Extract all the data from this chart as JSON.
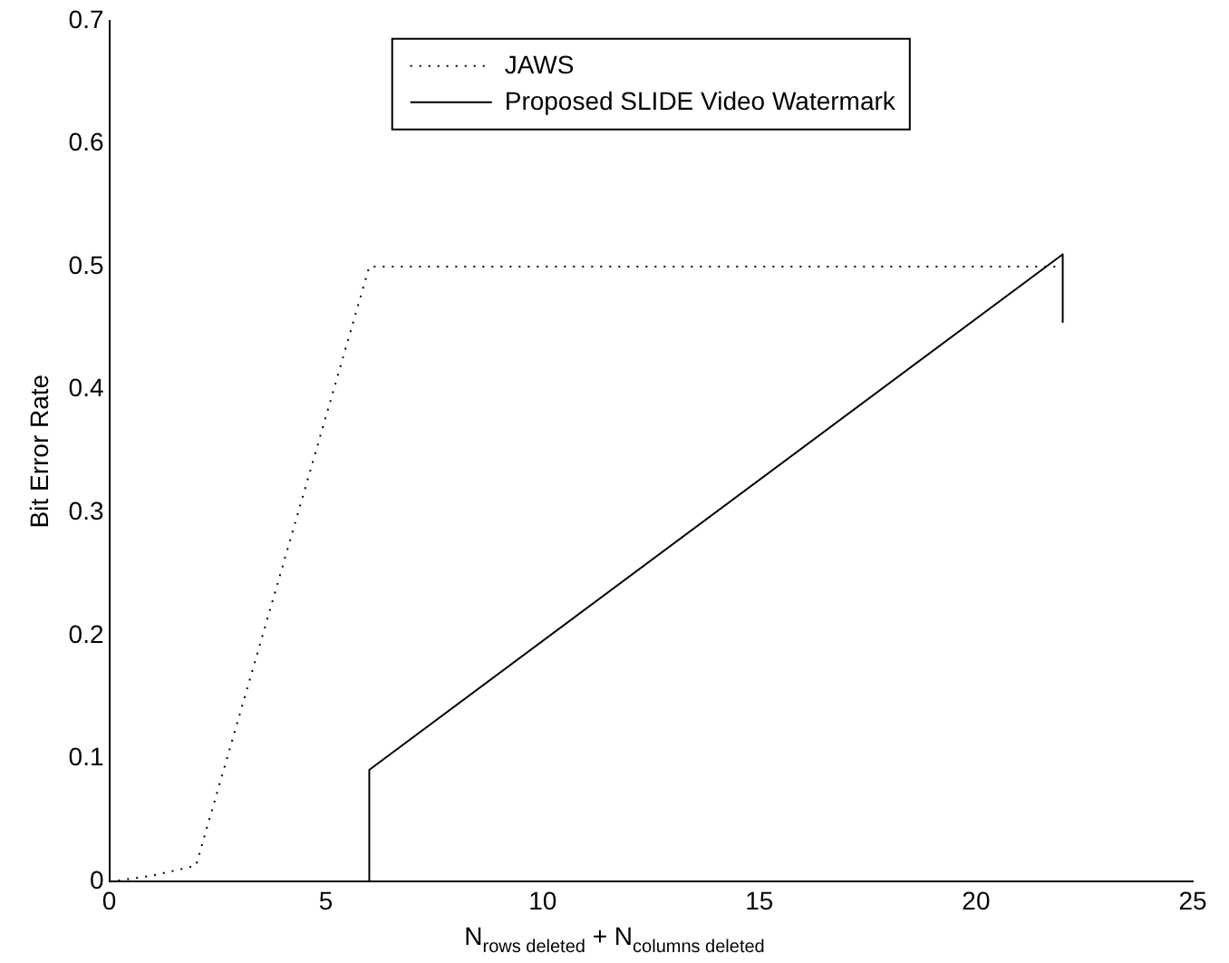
{
  "chart_data": {
    "type": "line",
    "xlabel": "N$_{rows deleted}$ + N$_{columns deleted}$",
    "ylabel": "Bit Error Rate",
    "xlim": [
      0,
      25
    ],
    "xticks": [
      0,
      5,
      10,
      15,
      20,
      25
    ],
    "ylim": [
      0,
      0.7
    ],
    "yticks": [
      0,
      0.1,
      0.2,
      0.3,
      0.4,
      0.5,
      0.6,
      0.7
    ],
    "grid": false,
    "legend": "top",
    "marker": "none",
    "series": [
      {
        "name": "JAWS",
        "color": "#000000",
        "line_style": "dotted",
        "x": [
          0,
          1,
          2,
          6,
          22
        ],
        "values": [
          0,
          0.005,
          0.013,
          0.5,
          0.5
        ]
      },
      {
        "name": "Proposed SLIDE Video Watermark",
        "color": "#000000",
        "line_style": "solid",
        "x": [
          6,
          6,
          22,
          22
        ],
        "values": [
          0,
          0.091,
          0.51,
          0.455
        ]
      }
    ]
  }
}
